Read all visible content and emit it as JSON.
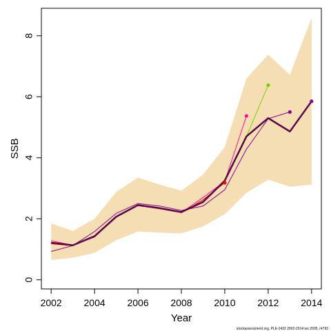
{
  "chart_data": {
    "type": "line",
    "title": "",
    "xlabel": "Year",
    "ylabel": "SSB",
    "xlim": [
      2001.55,
      2014.45
    ],
    "ylim": [
      -0.3,
      8.9
    ],
    "x_ticks": [
      2002,
      2004,
      2006,
      2008,
      2010,
      2012,
      2014
    ],
    "y_ticks": [
      0,
      2,
      4,
      6,
      8
    ],
    "grid": false,
    "legend": "none",
    "credit": "stockassessment.org, PLE-2432 2002-2014 wo 2005, r4793",
    "band": {
      "color": "#F5DEB3",
      "x": [
        2002,
        2003,
        2004,
        2005,
        2006,
        2007,
        2008,
        2009,
        2010,
        2011,
        2012,
        2013,
        2014
      ],
      "lower": [
        0.65,
        0.72,
        0.88,
        1.3,
        1.58,
        1.55,
        1.52,
        1.75,
        2.15,
        2.85,
        3.28,
        3.05,
        3.12
      ],
      "upper": [
        1.85,
        1.6,
        2.0,
        2.88,
        3.35,
        3.12,
        2.92,
        3.45,
        4.35,
        6.6,
        7.38,
        6.72,
        8.58
      ]
    },
    "series": [
      {
        "color": "#8B008B",
        "width": 1,
        "x": [
          2002,
          2003,
          2004,
          2005,
          2006,
          2007,
          2008,
          2009,
          2010,
          2011,
          2012,
          2013
        ],
        "values": [
          0.93,
          1.12,
          1.58,
          2.18,
          2.5,
          2.42,
          2.27,
          2.42,
          2.95,
          4.28,
          5.28,
          5.5
        ],
        "endpoint": true
      },
      {
        "color": "#FF1493",
        "width": 1,
        "x": [
          2002,
          2003,
          2004,
          2005,
          2006,
          2007,
          2008,
          2009,
          2010,
          2011
        ],
        "values": [
          1.28,
          1.13,
          1.4,
          2.05,
          2.43,
          2.33,
          2.2,
          2.7,
          3.22,
          5.37
        ],
        "endpoint": true
      },
      {
        "color": "#7CCD00",
        "width": 1,
        "x": [
          2002,
          2003,
          2004,
          2005,
          2006,
          2007,
          2008,
          2009,
          2010,
          2011,
          2012
        ],
        "values": [
          1.22,
          1.12,
          1.45,
          2.08,
          2.45,
          2.35,
          2.22,
          2.55,
          3.25,
          4.7,
          6.38
        ],
        "endpoint": true
      },
      {
        "color": "#FF0000",
        "width": 1,
        "x": [
          2002,
          2003,
          2004,
          2005,
          2006,
          2007,
          2008,
          2009,
          2010
        ],
        "values": [
          1.18,
          1.12,
          1.42,
          2.06,
          2.44,
          2.34,
          2.2,
          2.62,
          3.18
        ],
        "endpoint": true
      },
      {
        "color": "#2A0010",
        "width": 2.4,
        "x": [
          2002,
          2003,
          2004,
          2005,
          2006,
          2007,
          2008,
          2009,
          2010,
          2011,
          2012,
          2013,
          2014
        ],
        "values": [
          1.22,
          1.13,
          1.43,
          2.07,
          2.45,
          2.35,
          2.22,
          2.55,
          3.25,
          4.7,
          5.3,
          4.86,
          5.85
        ],
        "endpoint": false
      },
      {
        "color": "#8B008B",
        "width": 1,
        "x": [
          2002,
          2003,
          2004,
          2005,
          2006,
          2007,
          2008,
          2009,
          2010,
          2011,
          2012,
          2013,
          2014
        ],
        "values": [
          1.22,
          1.13,
          1.43,
          2.07,
          2.45,
          2.35,
          2.22,
          2.55,
          3.25,
          4.7,
          5.3,
          4.86,
          5.85
        ],
        "endpoint": true
      }
    ]
  }
}
